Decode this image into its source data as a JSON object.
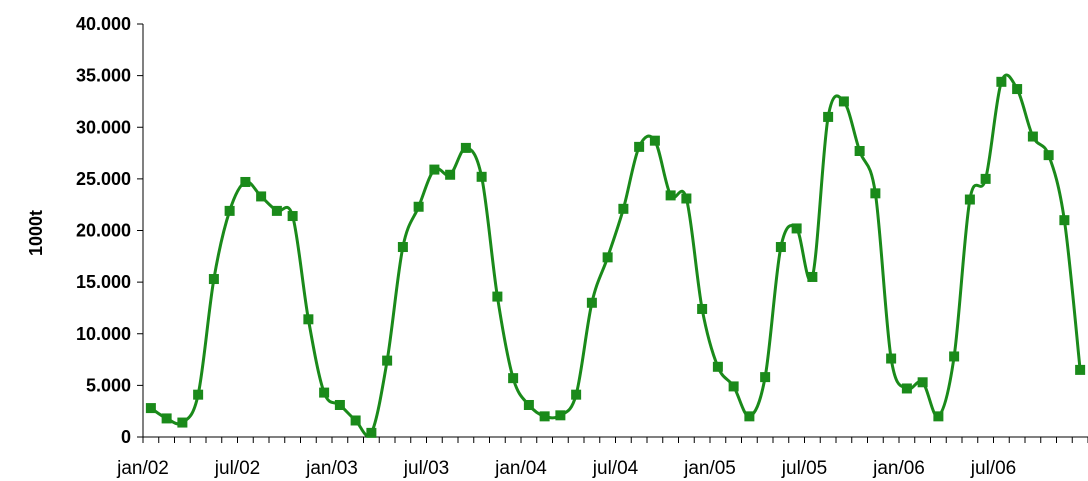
{
  "chart_data": {
    "type": "line",
    "ylabel": "1000t",
    "ylim": [
      0,
      40000
    ],
    "ytick_labels": [
      "0",
      "5.000",
      "10.000",
      "15.000",
      "20.000",
      "25.000",
      "30.000",
      "35.000",
      "40.000"
    ],
    "xtick_labels": [
      "jan/02",
      "jul/02",
      "jan/03",
      "jul/03",
      "jan/04",
      "jul/04",
      "jan/05",
      "jul/05",
      "jan/06",
      "jul/06"
    ],
    "grid": false,
    "legend": "none",
    "series": [
      {
        "color": "#1a8a1a",
        "marker": "square",
        "values": [
          2800,
          1800,
          1400,
          4100,
          15300,
          21900,
          24700,
          23300,
          21900,
          21400,
          11400,
          4300,
          3100,
          1600,
          400,
          7400,
          18400,
          22300,
          25900,
          25400,
          28000,
          25200,
          13600,
          5700,
          3100,
          2000,
          2100,
          4100,
          13000,
          17400,
          22100,
          28100,
          28700,
          23400,
          23100,
          12400,
          6800,
          4900,
          2000,
          5800,
          18400,
          20200,
          15500,
          31000,
          32500,
          27700,
          23600,
          7600,
          4700,
          5300,
          2000,
          7800,
          23000,
          25000,
          34400,
          33700,
          29100,
          27300,
          21000,
          6500
        ]
      }
    ]
  }
}
